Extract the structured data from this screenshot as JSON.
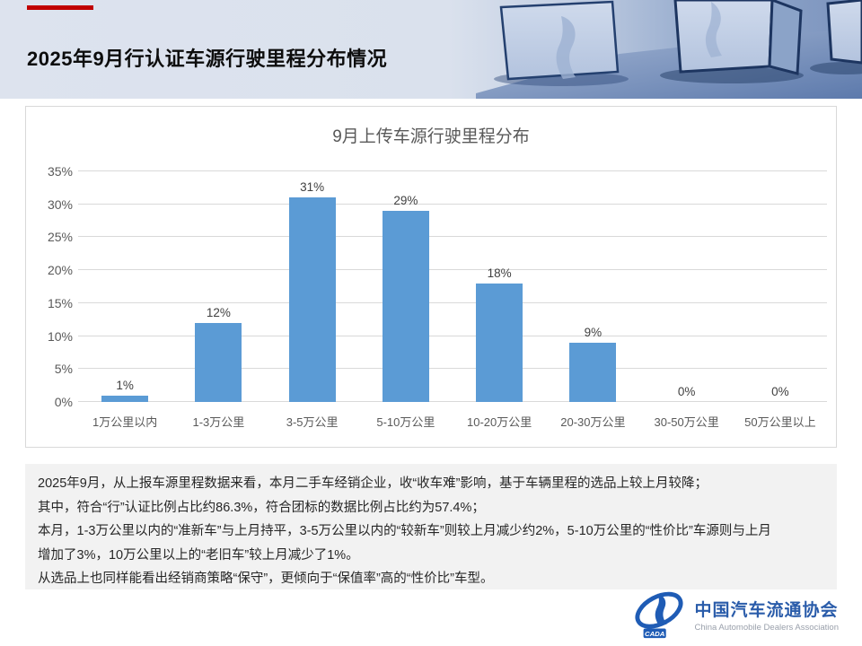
{
  "header": {
    "title": "2025年9月行认证车源行驶里程分布情况"
  },
  "chart_data": {
    "type": "bar",
    "title": "9月上传车源行驶里程分布",
    "categories": [
      "1万公里以内",
      "1-3万公里",
      "3-5万公里",
      "5-10万公里",
      "10-20万公里",
      "20-30万公里",
      "30-50万公里",
      "50万公里以上"
    ],
    "values": [
      1,
      12,
      31,
      29,
      18,
      9,
      0,
      0
    ],
    "value_labels": [
      "1%",
      "12%",
      "31%",
      "29%",
      "18%",
      "9%",
      "0%",
      "0%"
    ],
    "yticks": [
      "0%",
      "5%",
      "10%",
      "15%",
      "20%",
      "25%",
      "30%",
      "35%"
    ],
    "ylim": [
      0,
      35
    ],
    "xlabel": "",
    "ylabel": "",
    "grid": true,
    "legend": false,
    "bar_color": "#5b9bd5"
  },
  "summary": {
    "lines": [
      "2025年9月，从上报车源里程数据来看，本月二手车经销企业，收“收车难”影响，基于车辆里程的选品上较上月较降；",
      "其中，符合“行”认证比例占比约86.3%，符合团标的数据比例占比约为57.4%；",
      "本月，1-3万公里以内的“准新车”与上月持平，3-5万公里以内的“较新车”则较上月减少约2%，5-10万公里的“性价比”车源则与上月",
      "增加了3%，10万公里以上的“老旧车”较上月减少了1%。",
      "从选品上也同样能看出经销商策略“保守”，更倾向于“保值率”高的“性价比”车型。"
    ]
  },
  "footer": {
    "logo": {
      "cada_label": "CADA",
      "org_name_zh": "中国汽车流通协会",
      "org_name_en": "China Automobile Dealers Association"
    }
  },
  "colors": {
    "accent_red": "#c00000",
    "bar_blue": "#5b9bd5",
    "logo_blue": "#2a5caa"
  }
}
